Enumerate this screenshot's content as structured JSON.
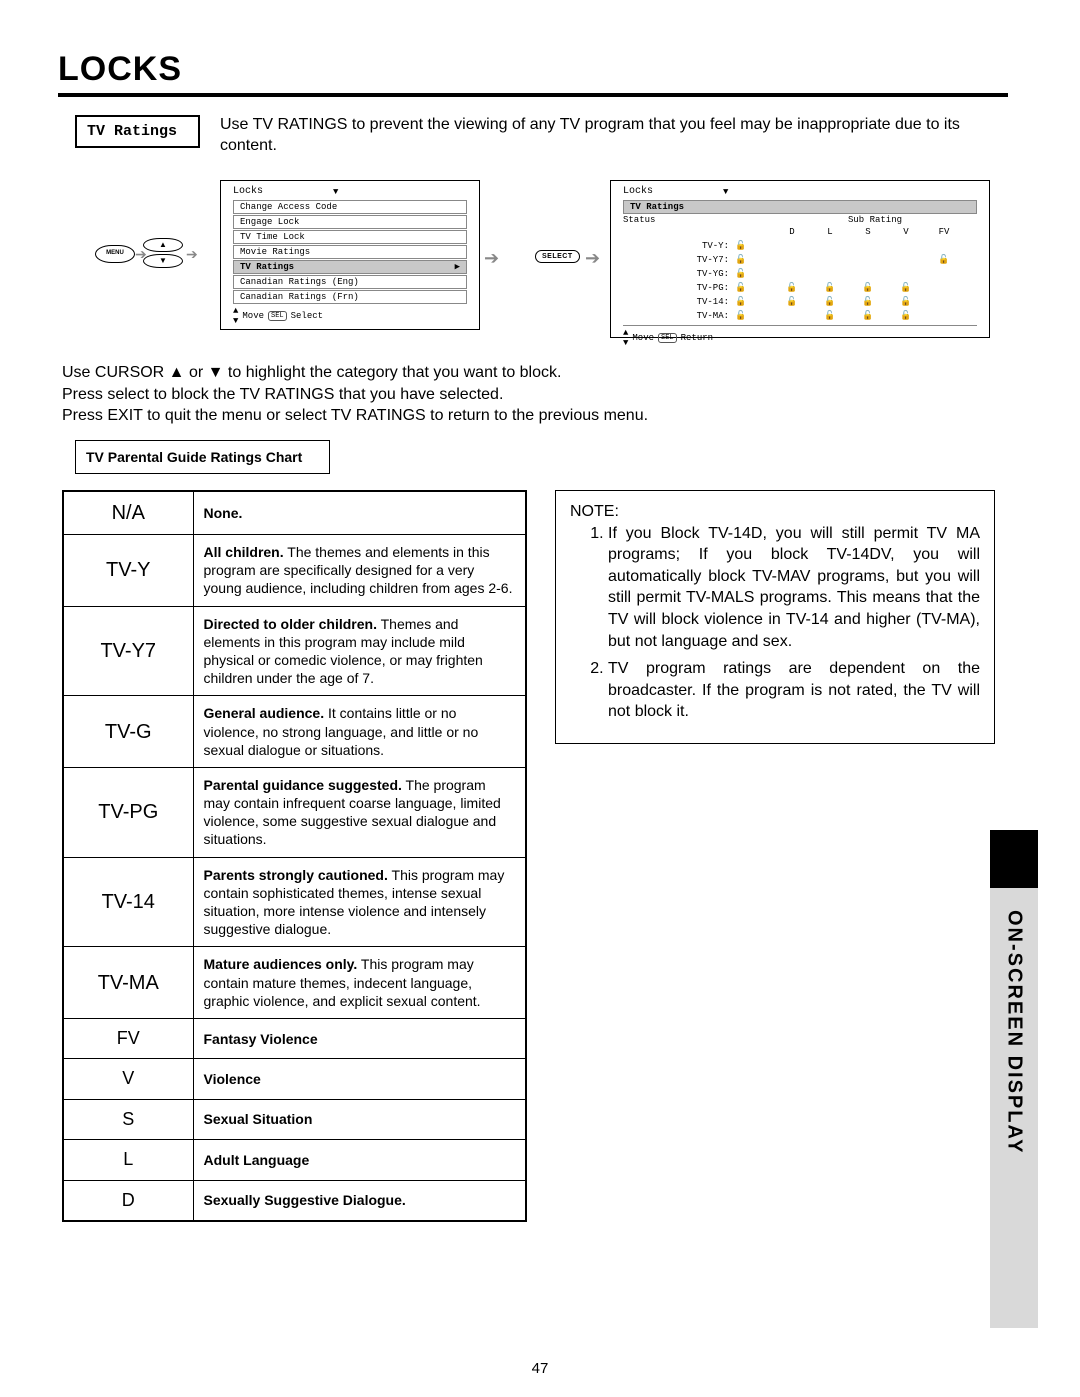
{
  "title": "LOCKS",
  "tvRatingsLabel": "TV Ratings",
  "intro": "Use TV RATINGS to prevent the viewing of any TV program that you feel may be inappropriate due to its content.",
  "menuBtn": "MENU",
  "selectBtn": "SELECT",
  "osdLeft": {
    "title": "Locks",
    "items": [
      "Change Access Code",
      "Engage Lock",
      "TV Time Lock",
      "Movie Ratings",
      "TV Ratings",
      "Canadian Ratings (Eng)",
      "Canadian Ratings (Frn)"
    ],
    "selectedIndex": 4,
    "footer": "Move",
    "footerSel": "SEL",
    "footerSelect": "Select"
  },
  "osdRight": {
    "title": "Locks",
    "selRow": "TV Ratings",
    "statusLabel": "Status",
    "subLabel": "Sub Rating",
    "cols": [
      "D",
      "L",
      "S",
      "V",
      "FV"
    ],
    "rows": [
      {
        "name": "TV-Y:",
        "main": true,
        "cells": [
          false,
          false,
          false,
          false,
          false
        ]
      },
      {
        "name": "TV-Y7:",
        "main": true,
        "cells": [
          false,
          false,
          false,
          false,
          true
        ]
      },
      {
        "name": "TV-YG:",
        "main": true,
        "cells": [
          false,
          false,
          false,
          false,
          false
        ]
      },
      {
        "name": "TV-PG:",
        "main": true,
        "cells": [
          true,
          true,
          true,
          true,
          false
        ]
      },
      {
        "name": "TV-14:",
        "main": true,
        "cells": [
          true,
          true,
          true,
          true,
          false
        ]
      },
      {
        "name": "TV-MA:",
        "main": true,
        "cells": [
          false,
          true,
          true,
          true,
          false
        ]
      }
    ],
    "footer": "Move",
    "footerSel": "SEL",
    "footerReturn": "Return"
  },
  "instructions": [
    "Use CURSOR ▲ or ▼ to highlight the category that you want to block.",
    "Press select to block the TV RATINGS that you have selected.",
    "Press EXIT to quit the menu or select TV RATINGS to return to the previous menu."
  ],
  "chartTitle": "TV Parental Guide Ratings Chart",
  "ratingsTable": [
    {
      "code": "N/A",
      "bold": "None.",
      "rest": ""
    },
    {
      "code": "TV-Y",
      "bold": "All children.",
      "rest": " The themes and elements in this program are specifically designed for a very young audience, including children from ages 2-6."
    },
    {
      "code": "TV-Y7",
      "bold": "Directed to older children.",
      "rest": " Themes and elements in this program may include mild physical or comedic violence, or may frighten children under the age of 7."
    },
    {
      "code": "TV-G",
      "bold": "General audience.",
      "rest": " It contains little or no violence, no strong language, and little or no sexual dialogue or situations."
    },
    {
      "code": "TV-PG",
      "bold": "Parental guidance suggested.",
      "rest": " The program may contain infrequent coarse language, limited violence, some suggestive sexual dialogue and situations."
    },
    {
      "code": "TV-14",
      "bold": "Parents strongly cautioned.",
      "rest": " This program may contain sophisticated themes, intense sexual situation, more intense violence and intensely suggestive dialogue."
    },
    {
      "code": "TV-MA",
      "bold": "Mature audiences only.",
      "rest": " This program may contain mature themes, indecent language, graphic violence, and explicit sexual content."
    },
    {
      "code": "FV",
      "bold": "Fantasy Violence",
      "rest": ""
    },
    {
      "code": "V",
      "bold": "Violence",
      "rest": ""
    },
    {
      "code": "S",
      "bold": "Sexual Situation",
      "rest": ""
    },
    {
      "code": "L",
      "bold": "Adult Language",
      "rest": ""
    },
    {
      "code": "D",
      "bold": "Sexually Suggestive Dialogue.",
      "rest": ""
    }
  ],
  "note": {
    "heading": "NOTE:",
    "items": [
      "If you Block TV-14D, you will still permit TV MA programs; If you block TV-14DV, you will automatically block TV-MAV programs, but you will still permit TV-MALS programs. This means that the TV will block violence in TV-14 and higher (TV-MA), but not language and sex.",
      "TV program ratings are dependent on the broadcaster. If the program is not rated, the TV will not block it."
    ]
  },
  "sideTab": "ON-SCREEN DISPLAY",
  "pageNumber": "47",
  "glyphs": {
    "lock": "🔒",
    "unlock": "🔓",
    "right": "▶",
    "down": "▼",
    "up": "▲",
    "updown": "▲▼",
    "flowArrow": "➔"
  }
}
